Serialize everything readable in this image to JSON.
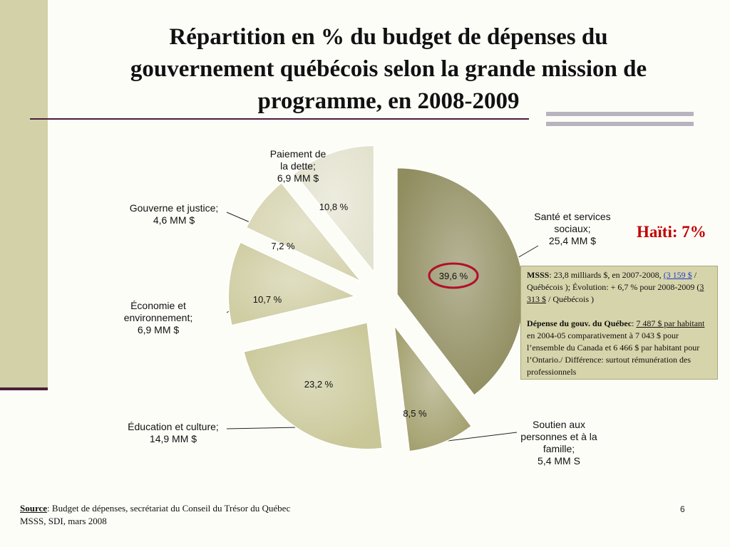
{
  "title": {
    "line1": "Répartition en % du budget de dépenses du",
    "line2": "gouvernement québécois selon la grande mission de",
    "line3": "programme, en 2008-2009"
  },
  "chart_data": {
    "type": "pie",
    "categories": [
      "Santé et services sociaux",
      "Soutien aux personnes et à la famille",
      "Éducation et culture",
      "Économie et environnement",
      "Gouverne et justice",
      "Paiement de la dette"
    ],
    "values": [
      39.6,
      8.5,
      23.2,
      10.7,
      7.2,
      10.8
    ],
    "percent_labels": [
      "39,6 %",
      "8,5 %",
      "23,2 %",
      "10,7 %",
      "7,2 %",
      "10,8 %"
    ],
    "slices": [
      {
        "lines": [
          "Santé et services",
          "sociaux;",
          "25,4 MM $"
        ],
        "percent": "39,6 %",
        "value": 39.6,
        "color": "#8f8c5e"
      },
      {
        "lines": [
          "Soutien aux",
          "personnes et à la",
          "famille;",
          "5,4 MM S"
        ],
        "percent": "8,5 %",
        "value": 8.5,
        "color": "#a3a06e"
      },
      {
        "lines": [
          "Éducation et culture;",
          "14,9 MM $"
        ],
        "percent": "23,2 %",
        "value": 23.2,
        "color": "#c9c797"
      },
      {
        "lines": [
          "Économie et",
          "environnement;",
          "6,9 MM $"
        ],
        "percent": "10,7 %",
        "value": 10.7,
        "color": "#cfcda2"
      },
      {
        "lines": [
          "Gouverne et justice;",
          "4,6 MM $"
        ],
        "percent": "7,2 %",
        "value": 7.2,
        "color": "#d6d4b0"
      },
      {
        "lines": [
          "Paiement de",
          "la dette;",
          "6,9 MM $"
        ],
        "percent": "10,8 %",
        "value": 10.8,
        "color": "#e3e2ce"
      }
    ],
    "highlighted_slice": "39,6 %",
    "highlight_color": "#b0102a"
  },
  "callout": "Haïti: 7%",
  "note": {
    "p1_bold": "MSSS",
    "p1_text1": ": 23,8 milliards $, en 2007-2008,",
    "p1_link": "(3 159 $",
    "p1_text2": " / Québécois ); Évolution: + 6,7 % pour 2008-2009 (",
    "p1_underlined": "3 313 $",
    "p1_text3": " / Québécois )",
    "p2_bold": "Dépense du gouv. du Québec",
    "p2_text1": ": ",
    "p2_underlined": "7 487 $ par habitant",
    "p2_text2": " en 2004-05 comparativement à 7 043 $ pour l’ensemble du Canada et 6 466 $ par habitant pour l’Ontario./ Différence: surtout rémunération des professionnels"
  },
  "footer": {
    "source_label": "Source",
    "source_text": ": Budget de dépenses, secrétariat du Conseil du Trésor du Québec",
    "source_line2": "MSSS, SDI, mars 2008",
    "page_number": "6"
  },
  "colors": {
    "left_band": "#d2d1a8",
    "rule": "#4a1f3a",
    "note_background": "#d6d4aa",
    "callout": "#c00000"
  }
}
